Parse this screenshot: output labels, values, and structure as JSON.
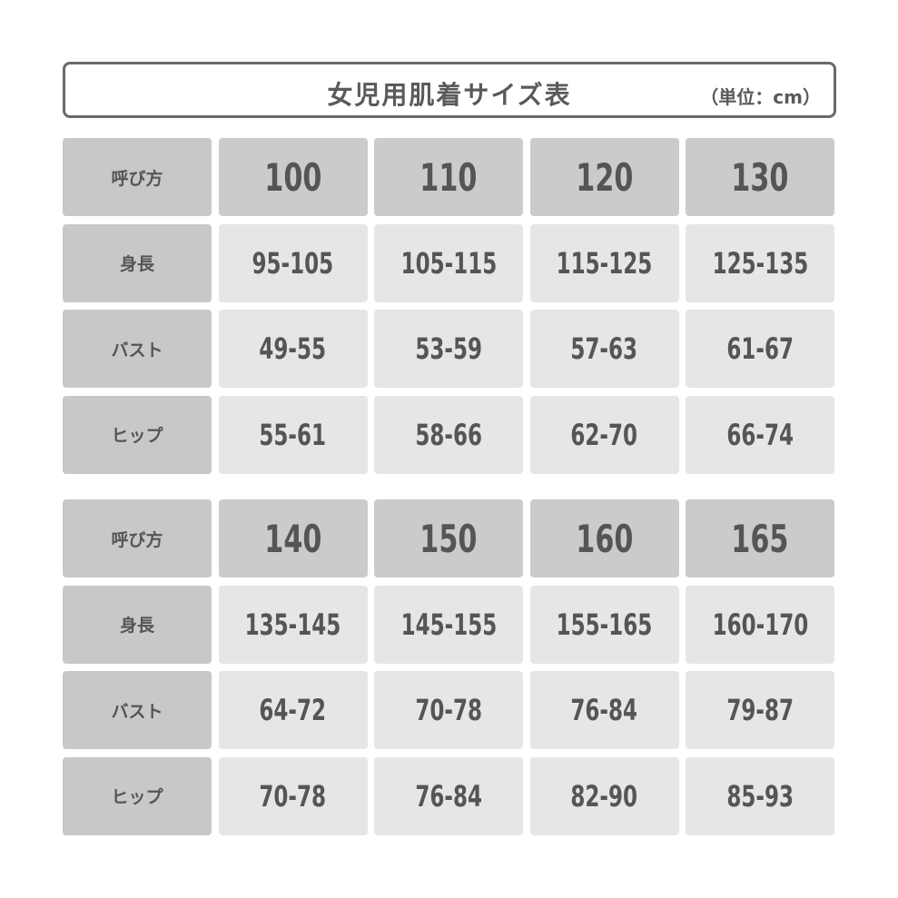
{
  "title": "女児用肌着サイズ表",
  "unit": "（単位：cm）",
  "tables": [
    {
      "rows": [
        {
          "label": "呼び方",
          "values": [
            "100",
            "110",
            "120",
            "130"
          ]
        },
        {
          "label": "身長",
          "values": [
            "95-105",
            "105-115",
            "115-125",
            "125-135"
          ]
        },
        {
          "label": "バスト",
          "values": [
            "49-55",
            "53-59",
            "57-63",
            "61-67"
          ]
        },
        {
          "label": "ヒップ",
          "values": [
            "55-61",
            "58-66",
            "62-70",
            "66-74"
          ]
        }
      ]
    },
    {
      "rows": [
        {
          "label": "呼び方",
          "values": [
            "140",
            "150",
            "160",
            "165"
          ]
        },
        {
          "label": "身長",
          "values": [
            "135-145",
            "145-155",
            "155-165",
            "160-170"
          ]
        },
        {
          "label": "バスト",
          "values": [
            "64-72",
            "70-78",
            "76-84",
            "79-87"
          ]
        },
        {
          "label": "ヒップ",
          "values": [
            "70-78",
            "76-84",
            "82-90",
            "85-93"
          ]
        }
      ]
    }
  ]
}
